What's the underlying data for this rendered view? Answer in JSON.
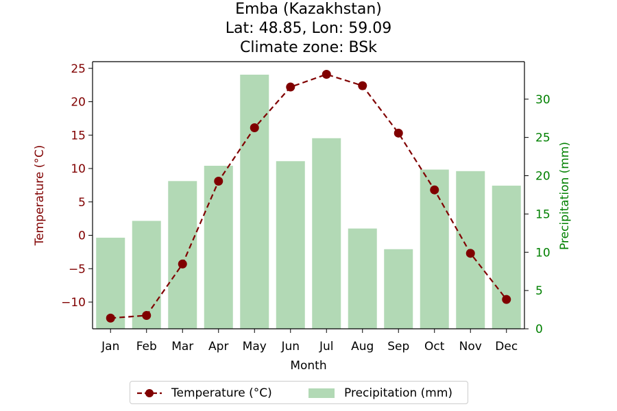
{
  "title_lines": [
    "Emba (Kazakhstan)",
    "Lat: 48.85, Lon: 59.09",
    "Climate zone: BSk"
  ],
  "colors": {
    "temperature": "#800000",
    "precipitation_bar": "#b2d9b5",
    "precipitation_axis": "#008000",
    "axis": "#000000"
  },
  "legend": {
    "temperature_label": "Temperature (°C)",
    "precipitation_label": "Precipitation (mm)"
  },
  "chart_data": {
    "type": "bar",
    "xlabel": "Month",
    "categories": [
      "Jan",
      "Feb",
      "Mar",
      "Apr",
      "May",
      "Jun",
      "Jul",
      "Aug",
      "Sep",
      "Oct",
      "Nov",
      "Dec"
    ],
    "series": [
      {
        "name": "Temperature (°C)",
        "type": "line",
        "axis": "left",
        "values": [
          -12.4,
          -12.0,
          -4.3,
          8.1,
          16.1,
          22.2,
          24.1,
          22.4,
          15.3,
          6.8,
          -2.7,
          -9.6
        ]
      },
      {
        "name": "Precipitation (mm)",
        "type": "bar",
        "axis": "right",
        "values": [
          11.9,
          14.1,
          19.3,
          21.3,
          33.2,
          21.9,
          24.9,
          13.1,
          10.4,
          20.8,
          20.6,
          18.7
        ]
      }
    ],
    "left_axis": {
      "label": "Temperature (°C)",
      "ylim": [
        -14.0,
        26.0
      ],
      "ticks": [
        -10,
        -5,
        0,
        5,
        10,
        15,
        20,
        25
      ],
      "tick_labels": [
        "−10",
        "−5",
        "0",
        "5",
        "10",
        "15",
        "20",
        "25"
      ]
    },
    "right_axis": {
      "label": "Precipitation (mm)",
      "ylim": [
        0,
        34.9
      ],
      "ticks": [
        0,
        5,
        10,
        15,
        20,
        25,
        30
      ],
      "tick_labels": [
        "0",
        "5",
        "10",
        "15",
        "20",
        "25",
        "30"
      ]
    },
    "legend_position": "bottom-center",
    "grid": false
  }
}
